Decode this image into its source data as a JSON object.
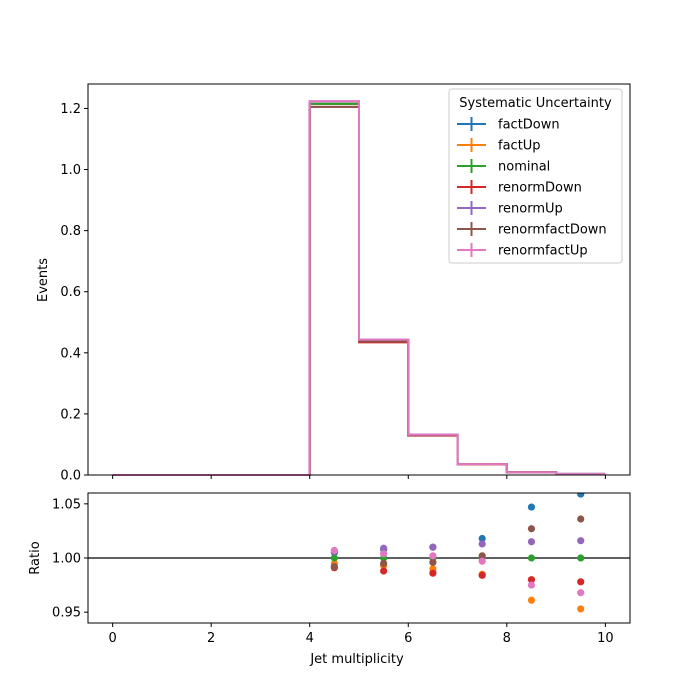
{
  "chart_data": [
    {
      "type": "step",
      "panel": "main",
      "ylabel": "Events",
      "xlim": [
        -0.5,
        10.5
      ],
      "ylim": [
        0,
        1.28
      ],
      "yticks": [
        0.0,
        0.2,
        0.4,
        0.6,
        0.8,
        1.0,
        1.2
      ],
      "ytick_labels": [
        "0.0",
        "0.2",
        "0.4",
        "0.6",
        "0.8",
        "1.0",
        "1.2"
      ],
      "bin_edges": [
        0,
        1,
        2,
        3,
        4,
        5,
        6,
        7,
        8,
        9,
        10
      ],
      "legend": {
        "title": "Systematic Uncertainty",
        "position": "top-right"
      },
      "series": [
        {
          "name": "factDown",
          "color": "#1f77b4",
          "values": [
            0,
            0,
            0,
            0,
            1.215,
            0.441,
            0.132,
            0.036,
            0.0095,
            0.0035
          ]
        },
        {
          "name": "factUp",
          "color": "#ff7f0e",
          "values": [
            0,
            0,
            0,
            0,
            1.215,
            0.437,
            0.13,
            0.035,
            0.0087,
            0.0032
          ]
        },
        {
          "name": "nominal",
          "color": "#2ca02c",
          "values": [
            0,
            0,
            0,
            0,
            1.215,
            0.439,
            0.131,
            0.0355,
            0.009,
            0.0034
          ]
        },
        {
          "name": "renormDown",
          "color": "#d62728",
          "values": [
            0,
            0,
            0,
            0,
            1.205,
            0.434,
            0.129,
            0.035,
            0.0088,
            0.0033
          ]
        },
        {
          "name": "renormUp",
          "color": "#9467bd",
          "values": [
            0,
            0,
            0,
            0,
            1.223,
            0.443,
            0.132,
            0.036,
            0.0091,
            0.0034
          ]
        },
        {
          "name": "renormfactDown",
          "color": "#8c564b",
          "values": [
            0,
            0,
            0,
            0,
            1.205,
            0.437,
            0.13,
            0.0356,
            0.0092,
            0.0035
          ]
        },
        {
          "name": "renormfactUp",
          "color": "#e377c2",
          "values": [
            0,
            0,
            0,
            0,
            1.224,
            0.443,
            0.132,
            0.0354,
            0.0088,
            0.0033
          ]
        }
      ]
    },
    {
      "type": "scatter",
      "panel": "ratio",
      "xlabel": "Jet multiplicity",
      "ylabel": "Ratio",
      "xlim": [
        -0.5,
        10.5
      ],
      "ylim": [
        0.94,
        1.06
      ],
      "xticks": [
        0,
        2,
        4,
        6,
        8,
        10
      ],
      "xtick_labels": [
        "0",
        "2",
        "4",
        "6",
        "8",
        "10"
      ],
      "yticks": [
        0.95,
        1.0,
        1.05
      ],
      "ytick_labels": [
        "0.95",
        "1.00",
        "1.05"
      ],
      "reference_line": 1.0,
      "x": [
        4.5,
        5.5,
        6.5,
        7.5,
        8.5,
        9.5
      ],
      "series": [
        {
          "name": "factDown",
          "color": "#1f77b4",
          "values": [
            1.005,
            1.008,
            1.01,
            1.018,
            1.047,
            1.059
          ]
        },
        {
          "name": "factUp",
          "color": "#ff7f0e",
          "values": [
            0.995,
            0.993,
            0.99,
            0.985,
            0.961,
            0.953
          ]
        },
        {
          "name": "nominal",
          "color": "#2ca02c",
          "values": [
            1.0,
            1.0,
            1.0,
            1.0,
            1.0,
            1.0
          ]
        },
        {
          "name": "renormDown",
          "color": "#d62728",
          "values": [
            0.991,
            0.988,
            0.986,
            0.984,
            0.98,
            0.978
          ]
        },
        {
          "name": "renormUp",
          "color": "#9467bd",
          "values": [
            1.006,
            1.009,
            1.01,
            1.013,
            1.015,
            1.016
          ]
        },
        {
          "name": "renormfactDown",
          "color": "#8c564b",
          "values": [
            0.992,
            0.995,
            0.996,
            1.002,
            1.027,
            1.036
          ]
        },
        {
          "name": "renormfactUp",
          "color": "#e377c2",
          "values": [
            1.007,
            1.004,
            1.002,
            0.997,
            0.975,
            0.968
          ]
        }
      ]
    }
  ]
}
